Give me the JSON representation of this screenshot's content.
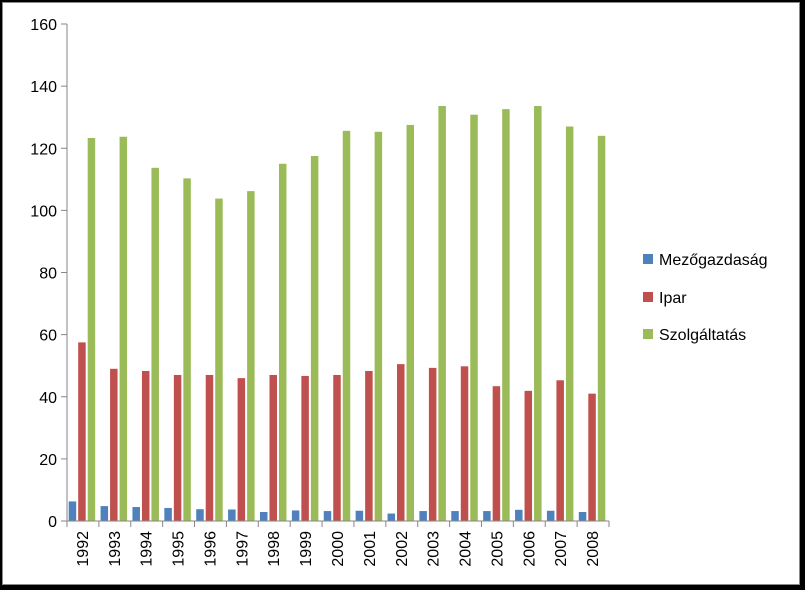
{
  "chart_data": {
    "type": "bar",
    "title": "",
    "xlabel": "",
    "ylabel": "",
    "ylim": [
      0,
      160
    ],
    "yticks": [
      "0",
      "20",
      "40",
      "60",
      "80",
      "100",
      "120",
      "140",
      "160"
    ],
    "grid": false,
    "legend_position": "right",
    "categories": [
      "1992",
      "1993",
      "1994",
      "1995",
      "1996",
      "1997",
      "1998",
      "1999",
      "2000",
      "2001",
      "2002",
      "2003",
      "2004",
      "2005",
      "2006",
      "2007",
      "2008"
    ],
    "series": [
      {
        "name": "Mezőgazdaság",
        "color": "#4F81BD",
        "values": [
          6.3,
          4.8,
          4.5,
          4.2,
          3.8,
          3.7,
          2.9,
          3.4,
          3.2,
          3.3,
          2.4,
          3.2,
          3.2,
          3.2,
          3.6,
          3.3,
          2.9
        ]
      },
      {
        "name": "Ipar",
        "color": "#C0504D",
        "values": [
          57.5,
          49.0,
          48.3,
          47.0,
          47.0,
          46.0,
          47.0,
          46.7,
          47.0,
          48.3,
          50.5,
          49.3,
          49.8,
          43.4,
          41.9,
          45.3,
          41.0
        ]
      },
      {
        "name": "Szolgáltatás",
        "color": "#9BBB59",
        "values": [
          123.3,
          123.7,
          113.7,
          110.3,
          103.8,
          106.2,
          115.0,
          117.5,
          125.6,
          125.3,
          127.5,
          133.6,
          130.8,
          132.6,
          133.6,
          127.0,
          124.0
        ]
      }
    ]
  }
}
